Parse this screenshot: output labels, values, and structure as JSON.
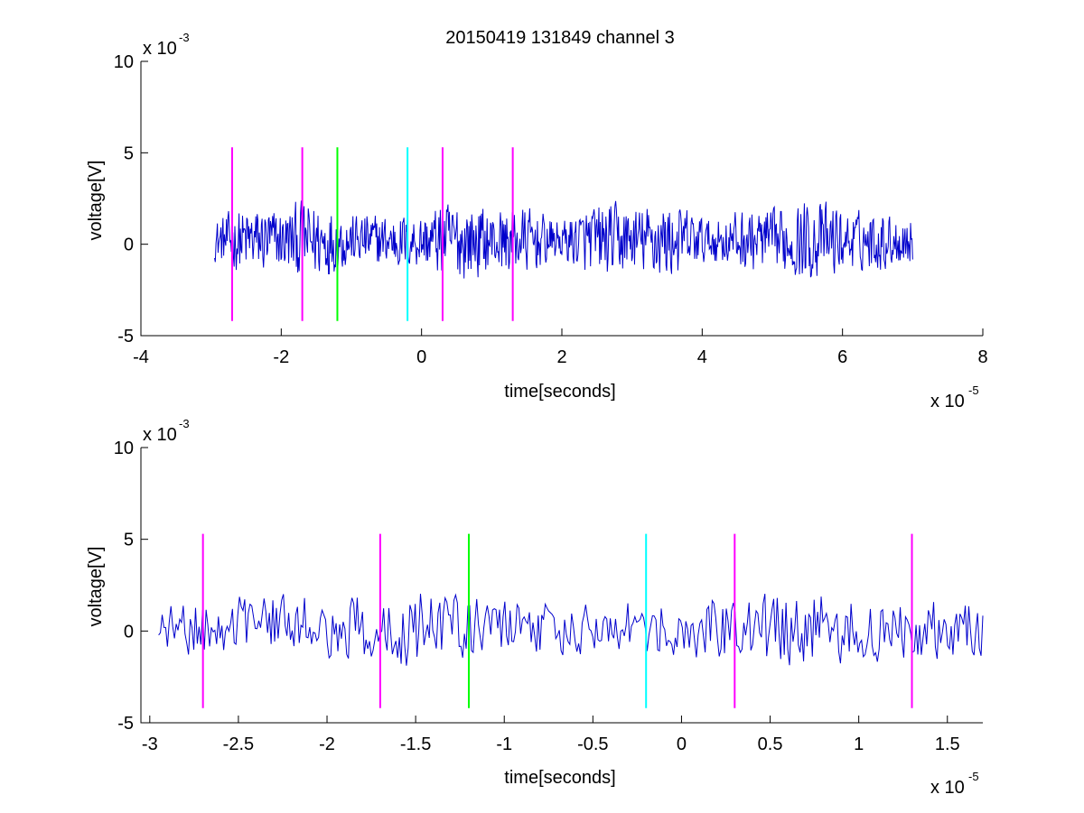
{
  "title": "20150419 131849 channel 3",
  "chart_data": [
    {
      "type": "line",
      "xlabel": "time[seconds]",
      "ylabel": "voltage[V]",
      "x_multiplier": {
        "base": "x 10",
        "exp": "-5"
      },
      "y_multiplier": {
        "base": "x 10",
        "exp": "-3"
      },
      "xlim": [
        -4,
        8
      ],
      "ylim": [
        -5,
        10
      ],
      "xticks": [
        -4,
        -2,
        0,
        2,
        4,
        6,
        8
      ],
      "xtick_labels": [
        "-4",
        "-2",
        "0",
        "2",
        "4",
        "6",
        "8"
      ],
      "yticks": [
        -5,
        0,
        5,
        10
      ],
      "ytick_labels": [
        "-5",
        "0",
        "5",
        "10"
      ],
      "grid": false,
      "series": [
        {
          "color": "#0000cc",
          "x_range": [
            -2.95,
            7.0
          ],
          "points": 1000,
          "y_approx_range": [
            -3.8,
            3.8
          ]
        }
      ],
      "markers": [
        {
          "x": -2.7,
          "color": "#ff00ff",
          "y_range": [
            -4.2,
            5.3
          ]
        },
        {
          "x": -1.7,
          "color": "#ff00ff",
          "y_range": [
            -4.2,
            5.3
          ]
        },
        {
          "x": -1.2,
          "color": "#00ff00",
          "y_range": [
            -4.2,
            5.3
          ]
        },
        {
          "x": -0.2,
          "color": "#00ffff",
          "y_range": [
            -4.2,
            5.3
          ]
        },
        {
          "x": 0.3,
          "color": "#ff00ff",
          "y_range": [
            -4.2,
            5.3
          ]
        },
        {
          "x": 1.3,
          "color": "#ff00ff",
          "y_range": [
            -4.2,
            5.3
          ]
        }
      ]
    },
    {
      "type": "line",
      "xlabel": "time[seconds]",
      "ylabel": "voltage[V]",
      "x_multiplier": {
        "base": "x 10",
        "exp": "-5"
      },
      "y_multiplier": {
        "base": "x 10",
        "exp": "-3"
      },
      "xlim": [
        -3.05,
        1.7
      ],
      "ylim": [
        -5,
        10
      ],
      "xticks": [
        -3,
        -2.5,
        -2,
        -1.5,
        -1,
        -0.5,
        0,
        0.5,
        1,
        1.5
      ],
      "xtick_labels": [
        "-3",
        "-2.5",
        "-2",
        "-1.5",
        "-1",
        "-0.5",
        "0",
        "0.5",
        "1",
        "1.5"
      ],
      "yticks": [
        -5,
        0,
        5,
        10
      ],
      "ytick_labels": [
        "-5",
        "0",
        "5",
        "10"
      ],
      "grid": false,
      "series": [
        {
          "color": "#0000cc",
          "x_range": [
            -2.95,
            1.7
          ],
          "points": 470,
          "y_approx_range": [
            -3.6,
            4.8
          ]
        }
      ],
      "markers": [
        {
          "x": -2.7,
          "color": "#ff00ff",
          "y_range": [
            -4.2,
            5.3
          ]
        },
        {
          "x": -1.7,
          "color": "#ff00ff",
          "y_range": [
            -4.2,
            5.3
          ]
        },
        {
          "x": -1.2,
          "color": "#00ff00",
          "y_range": [
            -4.2,
            5.3
          ]
        },
        {
          "x": -0.2,
          "color": "#00ffff",
          "y_range": [
            -4.2,
            5.3
          ]
        },
        {
          "x": 0.3,
          "color": "#ff00ff",
          "y_range": [
            -4.2,
            5.3
          ]
        },
        {
          "x": 1.3,
          "color": "#ff00ff",
          "y_range": [
            -4.2,
            5.3
          ]
        }
      ]
    }
  ]
}
